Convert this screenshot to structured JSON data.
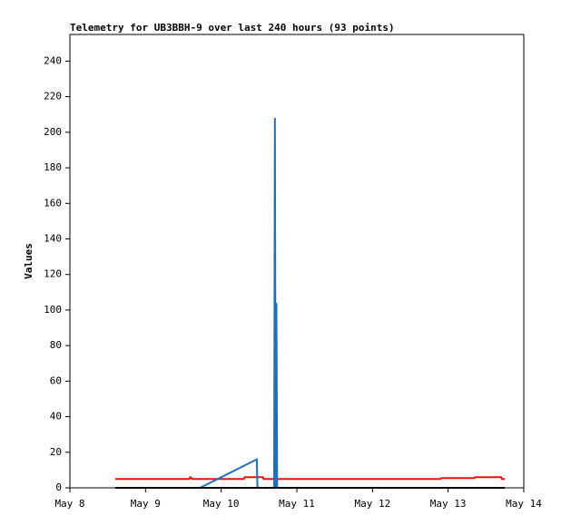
{
  "chart_data": {
    "type": "line",
    "title": "Telemetry for UB3BBH-9 over last 240 hours (93 points)",
    "y_label": "Values",
    "xlim": [
      8,
      14
    ],
    "xticks": [
      {
        "value": 8,
        "label": "May 8"
      },
      {
        "value": 9,
        "label": "May 9"
      },
      {
        "value": 10,
        "label": "May 10"
      },
      {
        "value": 11,
        "label": "May 11"
      },
      {
        "value": 12,
        "label": "May 12"
      },
      {
        "value": 13,
        "label": "May 13"
      },
      {
        "value": 14,
        "label": "May 14"
      }
    ],
    "ylim": [
      0,
      255
    ],
    "yticks": [
      0,
      20,
      40,
      60,
      80,
      100,
      120,
      140,
      160,
      180,
      200,
      220,
      240
    ],
    "grid": false,
    "series": [
      {
        "color": "#e8110f",
        "x": [
          8.6,
          9.58,
          9.59,
          9.62,
          10.3,
          10.31,
          10.55,
          10.56,
          12.9,
          12.91,
          13.35,
          13.36,
          13.7,
          13.71,
          13.75
        ],
        "values": [
          5,
          5,
          6,
          5,
          5,
          6,
          6,
          5,
          5,
          5.5,
          5.5,
          6,
          6,
          5,
          5
        ]
      },
      {
        "color": "#1f6fbf",
        "x": [
          9.72,
          10.47,
          10.48,
          10.7,
          10.71,
          10.72,
          10.73,
          10.74,
          13.75
        ],
        "values": [
          0,
          16,
          0,
          0,
          208,
          0,
          104,
          0,
          0
        ]
      },
      {
        "color": "#000000",
        "x": [
          8.6,
          13.75
        ],
        "values": [
          0,
          0
        ]
      }
    ]
  }
}
